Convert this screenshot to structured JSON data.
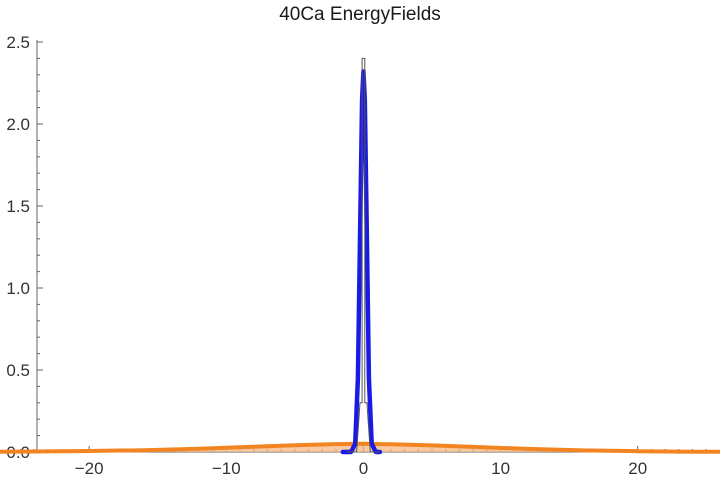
{
  "chart_data": {
    "type": "line",
    "title": "40Ca EnergyFields",
    "xlabel": "",
    "ylabel": "",
    "xlim": [
      -26.5,
      26
    ],
    "ylim": [
      0,
      2.5
    ],
    "grid": false,
    "legend": "none",
    "x_ticks": [
      -20,
      -10,
      0,
      10,
      20
    ],
    "x_tick_labels": [
      "−20",
      "−10",
      "0",
      "10",
      "20"
    ],
    "y_ticks": [
      0.0,
      0.5,
      1.0,
      1.5,
      2.0,
      2.5
    ],
    "y_tick_labels": [
      "0.0",
      "0.5",
      "1.0",
      "1.5",
      "2.0",
      "2.5"
    ],
    "series": [
      {
        "color": "#f28522",
        "fill": "#f6b882",
        "style": "filled-area",
        "x": [
          -26.5,
          -24,
          -20,
          -16,
          -12,
          -8,
          -5,
          -2,
          0,
          2,
          5,
          8,
          12,
          16,
          20,
          24,
          26
        ],
        "y": [
          0.002,
          0.003,
          0.006,
          0.011,
          0.02,
          0.032,
          0.041,
          0.048,
          0.05,
          0.047,
          0.04,
          0.031,
          0.019,
          0.01,
          0.005,
          0.002,
          0.001
        ]
      },
      {
        "color": "#1a1ae6",
        "style": "thick-line",
        "x": [
          -1.5,
          -0.9,
          -0.6,
          -0.4,
          -0.25,
          -0.1,
          0.0,
          0.1,
          0.25,
          0.4,
          0.6,
          0.9,
          1.2
        ],
        "y": [
          0.0,
          0.0,
          0.05,
          0.45,
          1.3,
          2.15,
          2.32,
          2.15,
          1.3,
          0.45,
          0.05,
          0.0,
          0.0
        ]
      },
      {
        "color": "#555555",
        "style": "thin-line",
        "x": [
          -1.2,
          -0.5,
          -0.25,
          -0.1,
          -0.1,
          0.1,
          0.1,
          0.25,
          0.5,
          1.2
        ],
        "y": [
          0.0,
          0.0,
          0.3,
          0.3,
          2.4,
          2.4,
          0.3,
          0.3,
          0.0,
          0.0
        ]
      }
    ]
  }
}
